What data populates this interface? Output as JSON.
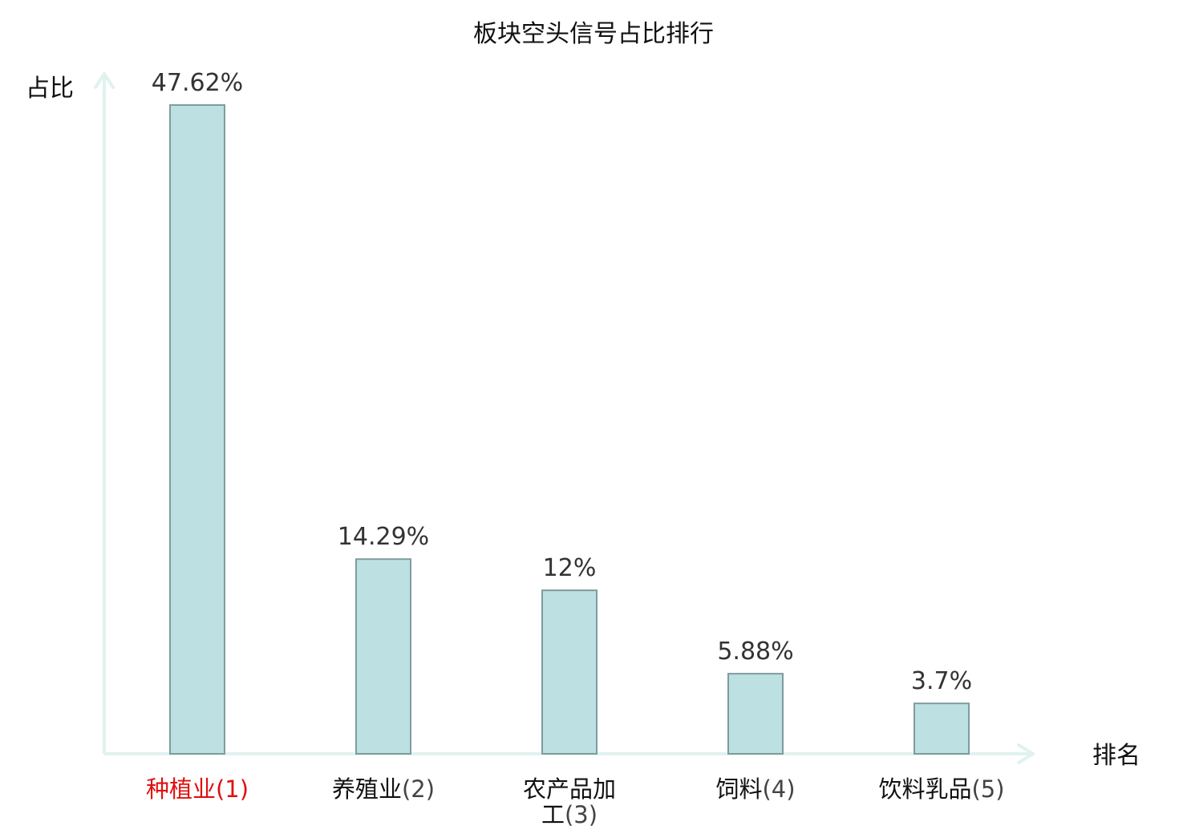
{
  "chart_data": {
    "type": "bar",
    "title": "板块空头信号占比排行",
    "ylabel": "占比",
    "xlabel": "排名",
    "categories": [
      "种植业(1)",
      "养殖业(2)",
      "农产品加工(3)",
      "饲料(4)",
      "饮料乳品(5)"
    ],
    "category_labels": [
      {
        "name_lines": [
          "种植业"
        ],
        "rank": "(1)",
        "highlight": true
      },
      {
        "name_lines": [
          "养殖业"
        ],
        "rank": "(2)",
        "highlight": false
      },
      {
        "name_lines": [
          "农产品加",
          "工"
        ],
        "rank": "(3)",
        "highlight": false
      },
      {
        "name_lines": [
          "饲料"
        ],
        "rank": "(4)",
        "highlight": false
      },
      {
        "name_lines": [
          "饮料乳品"
        ],
        "rank": "(5)",
        "highlight": false
      }
    ],
    "values": [
      47.62,
      14.29,
      12,
      5.88,
      3.7
    ],
    "value_labels": [
      "47.62%",
      "14.29%",
      "12%",
      "5.88%",
      "3.7%"
    ],
    "ylim": [
      0,
      47.62
    ],
    "grid": false,
    "colors": {
      "bar_fill": "#bde0e2",
      "bar_stroke": "#7f9c9e",
      "axis": "#e0f2ef",
      "highlight_label": "#e01010",
      "label": "#111111",
      "rank": "#444444"
    }
  }
}
